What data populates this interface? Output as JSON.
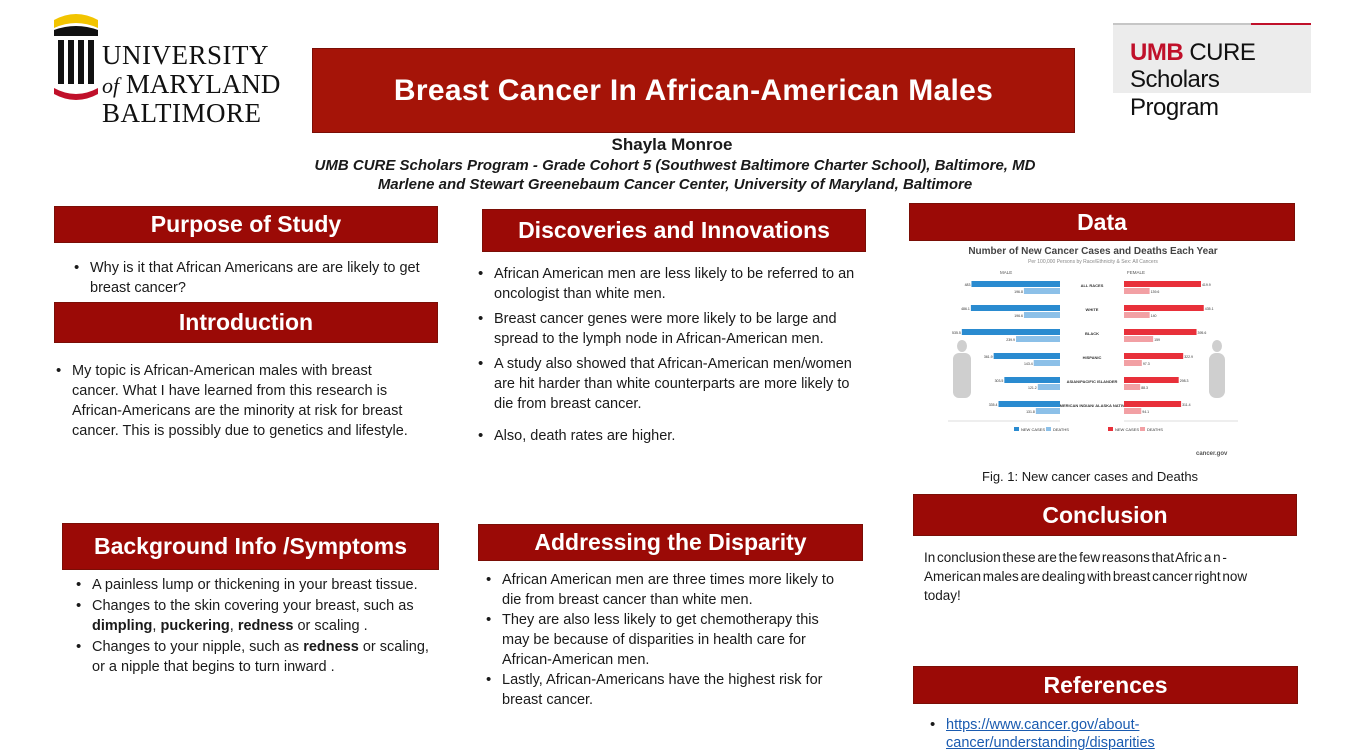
{
  "logos": {
    "umb": {
      "line1": "UNIVERSITY",
      "line2_of": "of",
      "line2": "MARYLAND",
      "line3": "BALTIMORE"
    },
    "cure": {
      "umb": "UMB",
      "cure": "CURE",
      "line2": "Scholars Program"
    }
  },
  "title": "Breast Cancer In African-American Males",
  "author": "Shayla Monroe",
  "affiliation_1": "UMB CURE Scholars Program - Grade Cohort 5 (Southwest Baltimore Charter School), Baltimore, MD",
  "affiliation_2": "Marlene and Stewart Greenebaum Cancer Center, University of Maryland, Baltimore",
  "purpose": {
    "header": "Purpose of Study",
    "items": [
      "Why is it that African Americans are are likely to get breast cancer?"
    ]
  },
  "introduction": {
    "header": "Introduction",
    "items": [
      "My topic is African-American males with breast cancer. What I have learned from this research is African-Americans are the minority at risk for breast cancer. This is possibly due to genetics and lifestyle."
    ]
  },
  "background": {
    "header": "Background Info /Symptoms",
    "item1": "A  painless  lump  or  thickening in your breast tissue.",
    "item2_pre": "Changes to the skin covering your breast, such as ",
    "item2_b1": "dimpling",
    "item2_sep1": ", ",
    "item2_b2": "puckering",
    "item2_sep2": ", ",
    "item2_b3": "redness",
    "item2_post": " or scaling .",
    "item3_pre": "Changes to your nipple, such as ",
    "item3_b1": "redness",
    "item3_post": " or scaling, or a nipple that begins to turn inward ."
  },
  "discoveries": {
    "header": "Discoveries and Innovations",
    "items": [
      "African  American men are less likely to be referred to an oncologist than white men.",
      "Breast cancer genes were more likely to be large and spread to the lymph node in African-American men.",
      "A study also showed that African-American men/women are hit harder than white counterparts are more likely to die from breast cancer.",
      "Also, death rates are higher."
    ]
  },
  "disparity": {
    "header": "Addressing the Disparity",
    "items": [
      "African  American men are three times more likely to die from breast cancer than white men.",
      "They are also less likely to get chemotherapy this may be because of disparities in health care for African-American men.",
      "Lastly, African-Americans have the highest risk for breast cancer."
    ]
  },
  "data_section": {
    "header": "Data",
    "caption": "Fig. 1:  New cancer cases and Deaths"
  },
  "conclusion": {
    "header": "Conclusion",
    "text": "In conclusion these are the few reasons that Afric a n - American males are dealing with breast cancer right now today!"
  },
  "references": {
    "header": "References",
    "link": "https://www.cancer.gov/about-cancer/understanding/disparities"
  },
  "chart_data": {
    "type": "bar",
    "title": "Number of New Cancer Cases and Deaths Each Year",
    "subtitle": "Per 100,000 Persons by Race/Ethnicity & Sex: All Cancers",
    "left_group": "MALE",
    "right_group": "FEMALE",
    "categories": [
      "ALL RACES",
      "WHITE",
      "BLACK",
      "HISPANIC",
      "ASIAN/PACIFIC ISLANDER",
      "AMERICAN INDIAN/ ALASKA NATIVE"
    ],
    "series": [
      {
        "name": "NEW CASES",
        "group": "MALE",
        "values": [
          483.0,
          486.1,
          535.5,
          361.9,
          303.5,
          335.4
        ]
      },
      {
        "name": "DEATHS",
        "group": "MALE",
        "values": [
          196.8,
          196.6,
          239.9,
          143.4,
          121.2,
          131.8
        ]
      },
      {
        "name": "NEW CASES",
        "group": "FEMALE",
        "values": [
          419.9,
          435.1,
          395.6,
          322.9,
          298.3,
          311.4
        ]
      },
      {
        "name": "DEATHS",
        "group": "FEMALE",
        "values": [
          139.6,
          140.0,
          159.0,
          97.3,
          88.3,
          94.1
        ]
      }
    ],
    "xlim": [
      0,
      600
    ],
    "colors": {
      "new_cases": "#2a8bd0",
      "deaths": "#e8303a"
    },
    "source": "cancer.gov"
  }
}
